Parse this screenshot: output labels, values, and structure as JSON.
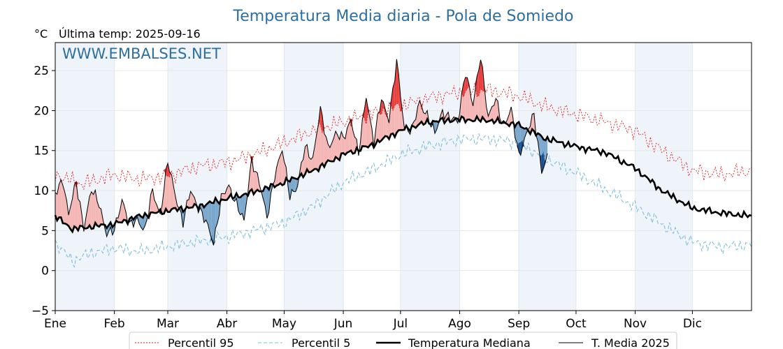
{
  "page": {
    "title": "Temperatura Media diaria - Pola de Somiedo",
    "unit": "°C",
    "last_temp_label": "Última temp: 2025-09-16",
    "watermark": "WWW.EMBALSES.NET"
  },
  "colors": {
    "title": "#2e6e9e",
    "p95": "#e41a1c",
    "p5": "#7fbfd8",
    "median": "#000000",
    "year": "#000000",
    "warm_fill": "#f5b7b5",
    "warm_strong": "#e8413f",
    "cold_fill": "#7aa7cc",
    "cold_strong": "#1f4e8c",
    "month_shade": "#eef4fa"
  },
  "chart_data": {
    "type": "line",
    "title": "Temperatura Media diaria - Pola de Somiedo",
    "ylabel": "°C",
    "ylim": [
      -5,
      28.5
    ],
    "xlim": [
      1,
      366
    ],
    "grid": true,
    "legend_placement": "bottom-center",
    "yticks": [
      "−5",
      "0",
      "5",
      "10",
      "15",
      "20",
      "25"
    ],
    "ytick_values": [
      -5,
      0,
      5,
      10,
      15,
      20,
      25
    ],
    "months": [
      "Ene",
      "Feb",
      "Mar",
      "Abr",
      "May",
      "Jun",
      "Jul",
      "Ago",
      "Sep",
      "Oct",
      "Nov",
      "Dic"
    ],
    "month_start_days": [
      1,
      32,
      60,
      91,
      121,
      152,
      182,
      213,
      244,
      274,
      305,
      335
    ],
    "x_unit": "day of year",
    "series": [
      {
        "name": "Percentil 95",
        "style": "dotted",
        "key_days": [
          1,
          15,
          32,
          45,
          60,
          75,
          91,
          105,
          121,
          136,
          152,
          166,
          182,
          197,
          213,
          228,
          244,
          258,
          274,
          289,
          305,
          319,
          335,
          350,
          366
        ],
        "values": [
          12.0,
          10.8,
          12.0,
          11.4,
          11.8,
          13.0,
          13.5,
          14.5,
          16.0,
          17.5,
          18.6,
          19.5,
          20.6,
          21.6,
          22.3,
          22.6,
          21.8,
          20.5,
          19.5,
          18.6,
          17.5,
          15.0,
          12.5,
          12.0,
          12.5
        ]
      },
      {
        "name": "Percentil 5",
        "style": "dashed",
        "key_days": [
          1,
          10,
          20,
          32,
          45,
          60,
          75,
          91,
          105,
          121,
          136,
          152,
          166,
          182,
          197,
          213,
          228,
          244,
          258,
          274,
          289,
          305,
          319,
          335,
          350,
          366
        ],
        "values": [
          3.5,
          1.2,
          2.2,
          2.8,
          2.4,
          3.0,
          3.6,
          4.2,
          5.0,
          6.0,
          8.0,
          11.0,
          12.5,
          14.5,
          15.6,
          16.4,
          16.5,
          16.0,
          14.0,
          12.2,
          10.2,
          8.0,
          5.8,
          3.5,
          3.0,
          3.2
        ]
      },
      {
        "name": "Temperatura Mediana",
        "style": "solid-thick",
        "key_days": [
          1,
          10,
          20,
          32,
          45,
          60,
          75,
          91,
          105,
          121,
          136,
          152,
          166,
          182,
          197,
          213,
          228,
          244,
          258,
          274,
          289,
          305,
          319,
          335,
          350,
          366
        ],
        "values": [
          6.8,
          5.2,
          5.5,
          5.8,
          6.8,
          7.5,
          8.0,
          9.0,
          9.8,
          11.0,
          12.5,
          14.5,
          15.6,
          17.5,
          18.6,
          18.9,
          18.8,
          18.2,
          16.5,
          15.5,
          14.8,
          12.8,
          10.0,
          7.8,
          7.2,
          6.8
        ]
      },
      {
        "name": "T. Media 2025",
        "style": "solid-thin",
        "key_days": [
          1,
          5,
          8,
          12,
          16,
          20,
          24,
          28,
          32,
          36,
          40,
          44,
          48,
          52,
          56,
          60,
          64,
          68,
          72,
          76,
          80,
          84,
          88,
          92,
          96,
          100,
          104,
          108,
          112,
          116,
          120,
          124,
          128,
          132,
          136,
          140,
          144,
          148,
          152,
          156,
          160,
          164,
          168,
          172,
          176,
          180,
          184,
          188,
          192,
          196,
          200,
          204,
          208,
          212,
          216,
          220,
          224,
          228,
          232,
          236,
          240,
          244,
          248,
          252,
          256,
          259
        ],
        "values": [
          9.5,
          11.5,
          7.0,
          11.0,
          5.5,
          10.0,
          8.5,
          4.5,
          5.0,
          9.0,
          5.5,
          6.5,
          5.0,
          10.0,
          7.0,
          13.5,
          9.5,
          6.0,
          10.0,
          8.0,
          6.0,
          3.5,
          9.0,
          10.5,
          8.5,
          6.0,
          14.0,
          11.0,
          6.5,
          12.0,
          15.0,
          9.5,
          10.5,
          15.5,
          14.0,
          20.0,
          15.5,
          17.0,
          16.5,
          19.0,
          14.5,
          22.0,
          16.0,
          21.5,
          19.0,
          26.0,
          18.0,
          17.5,
          21.0,
          19.5,
          17.0,
          20.0,
          19.0,
          18.5,
          25.0,
          20.5,
          27.0,
          19.0,
          21.5,
          18.0,
          20.0,
          14.5,
          17.0,
          19.5,
          12.5,
          14.0
        ]
      }
    ],
    "fills": [
      {
        "name": "warm_anomaly",
        "rule": "T. Media 2025 above Temperatura Mediana"
      },
      {
        "name": "cold_anomaly",
        "rule": "T. Media 2025 below Temperatura Mediana"
      }
    ]
  },
  "legend": {
    "items": [
      {
        "label": "Percentil 95",
        "style": "dotted",
        "color": "#e41a1c"
      },
      {
        "label": "Percentil 5",
        "style": "dashed",
        "color": "#7fbfd8"
      },
      {
        "label": "Temperatura Mediana",
        "style": "solid-thick",
        "color": "#000000"
      },
      {
        "label": "T. Media 2025",
        "style": "solid-thin",
        "color": "#000000"
      }
    ]
  }
}
